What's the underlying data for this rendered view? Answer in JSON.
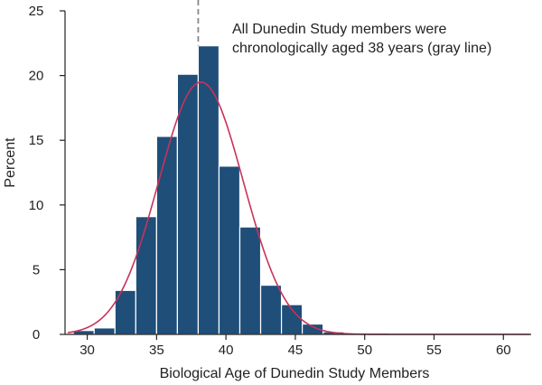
{
  "chart_data": {
    "type": "bar",
    "title": "",
    "xlabel": "Biological Age of Dunedin Study Members",
    "ylabel": "Percent",
    "xlim": [
      28.4,
      62
    ],
    "ylim": [
      0,
      25
    ],
    "x_ticks": [
      30,
      35,
      40,
      45,
      50,
      55,
      60
    ],
    "y_ticks": [
      0,
      5,
      10,
      15,
      20,
      25
    ],
    "bin_width": 1.5,
    "bins": [
      {
        "start": 29,
        "value": 0.3
      },
      {
        "start": 30.5,
        "value": 0.5
      },
      {
        "start": 32,
        "value": 3.4
      },
      {
        "start": 33.5,
        "value": 9.1
      },
      {
        "start": 35,
        "value": 15.3
      },
      {
        "start": 36.5,
        "value": 20.1
      },
      {
        "start": 38,
        "value": 22.3
      },
      {
        "start": 39.5,
        "value": 13.0
      },
      {
        "start": 41,
        "value": 8.3
      },
      {
        "start": 42.5,
        "value": 3.8
      },
      {
        "start": 44,
        "value": 2.3
      },
      {
        "start": 45.5,
        "value": 0.8
      },
      {
        "start": 47,
        "value": 0.2
      }
    ],
    "normal_curve": {
      "mean": 38.2,
      "sd": 3.05,
      "scale_percent_per_bin": 149
    },
    "reference_line": {
      "x": 38
    },
    "annotation_lines": [
      "All Dunedin Study members were",
      "chronologically aged 38 years (gray line)"
    ],
    "grid": false,
    "legend": "none"
  },
  "colors": {
    "bar_fill": "#1f4e79",
    "bar_edge": "#ffffff",
    "curve": "#c8325a",
    "reference_line": "#888888",
    "axis": "#222222"
  }
}
